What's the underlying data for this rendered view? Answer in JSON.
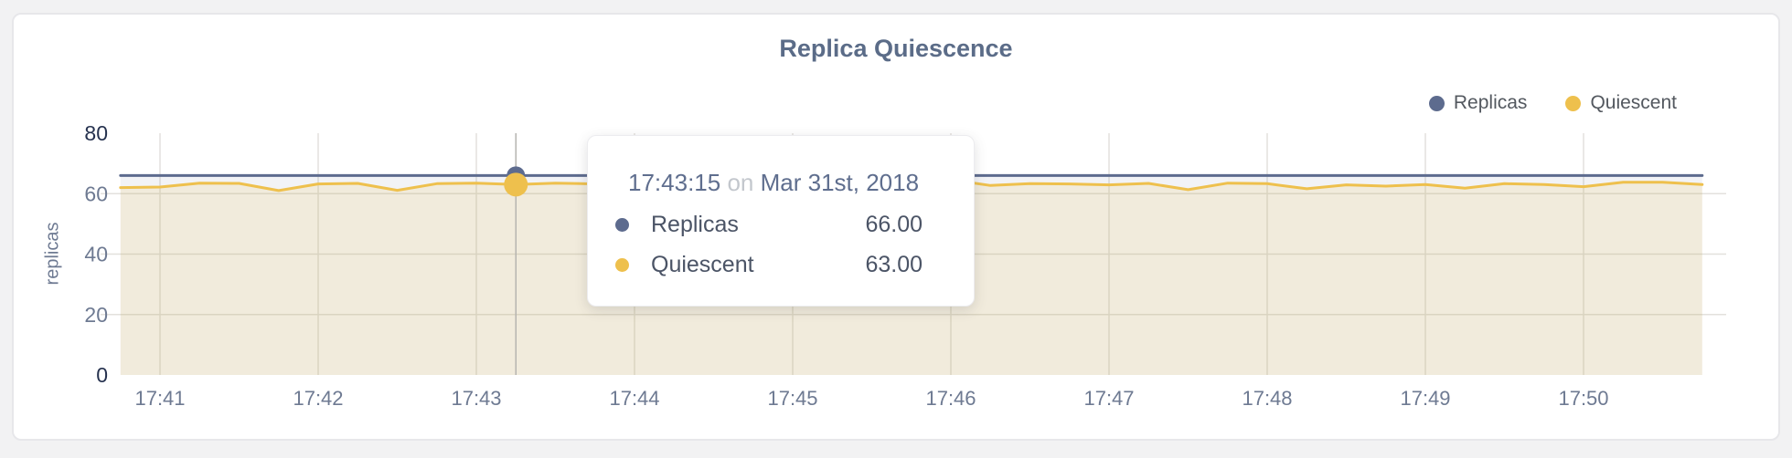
{
  "chart": {
    "title": "Replica Quiescence",
    "y_axis_label": "replicas"
  },
  "legend": {
    "items": [
      {
        "label": "Replicas",
        "color": "#5d6b8e"
      },
      {
        "label": "Quiescent",
        "color": "#eec04d"
      }
    ]
  },
  "tooltip": {
    "time": "17:43:15",
    "conjunction": "on",
    "date": "Mar 31st, 2018",
    "rows": [
      {
        "label": "Replicas",
        "value": "66.00",
        "color": "#5d6b8e"
      },
      {
        "label": "Quiescent",
        "value": "63.00",
        "color": "#eec04d"
      }
    ]
  },
  "colors": {
    "grid": "#e3e1dd",
    "crosshair": "#b6b4b0",
    "tick_label": "#6e7a92",
    "tick_label_edge": "#26324f",
    "title": "#5b6c88"
  },
  "chart_data": {
    "type": "line",
    "title": "Replica Quiescence",
    "xlabel": "",
    "ylabel": "replicas",
    "ylim": [
      0,
      80
    ],
    "grid": true,
    "legend_position": "top-right",
    "y_ticks": [
      0,
      20,
      40,
      60,
      80
    ],
    "x_ticks": [
      "17:41",
      "17:42",
      "17:43",
      "17:44",
      "17:45",
      "17:46",
      "17:47",
      "17:48",
      "17:49",
      "17:50"
    ],
    "x": [
      "17:40:45",
      "17:41:00",
      "17:41:15",
      "17:41:30",
      "17:41:45",
      "17:42:00",
      "17:42:15",
      "17:42:30",
      "17:42:45",
      "17:43:00",
      "17:43:15",
      "17:43:30",
      "17:43:45",
      "17:44:00",
      "17:44:15",
      "17:44:30",
      "17:44:45",
      "17:45:00",
      "17:45:15",
      "17:45:30",
      "17:45:45",
      "17:46:00",
      "17:46:15",
      "17:46:30",
      "17:46:45",
      "17:47:00",
      "17:47:15",
      "17:47:30",
      "17:47:45",
      "17:48:00",
      "17:48:15",
      "17:48:30",
      "17:48:45",
      "17:49:00",
      "17:49:15",
      "17:49:30",
      "17:49:45",
      "17:50:00",
      "17:50:15",
      "17:50:30",
      "17:50:45"
    ],
    "series": [
      {
        "name": "Replicas",
        "color": "#5d6b8e",
        "fill": "rgba(93,107,142,0.08)",
        "values": [
          66,
          66,
          66,
          66,
          66,
          66,
          66,
          66,
          66,
          66,
          66,
          66,
          66,
          66,
          66,
          66,
          66,
          66,
          66,
          66,
          66,
          66,
          66,
          66,
          66,
          66,
          66,
          66,
          66,
          66,
          66,
          66,
          66,
          66,
          66,
          66,
          66,
          66,
          66,
          66,
          66
        ]
      },
      {
        "name": "Quiescent",
        "color": "#eec04d",
        "fill": "rgba(238,192,77,0.15)",
        "values": [
          62.0,
          62.2,
          63.5,
          63.4,
          61.0,
          63.2,
          63.4,
          61.1,
          63.3,
          63.5,
          63.0,
          63.5,
          63.2,
          63.0,
          63.3,
          63.1,
          63.4,
          63.2,
          63.1,
          63.4,
          63.5,
          64.6,
          62.7,
          63.3,
          63.2,
          62.9,
          63.4,
          61.3,
          63.5,
          63.3,
          61.6,
          62.9,
          62.5,
          63.0,
          61.8,
          63.3,
          63.0,
          62.3,
          63.8,
          63.8,
          63.0
        ]
      }
    ],
    "hover": {
      "time": "17:43:15",
      "Replicas": 66.0,
      "Quiescent": 63.0
    }
  }
}
